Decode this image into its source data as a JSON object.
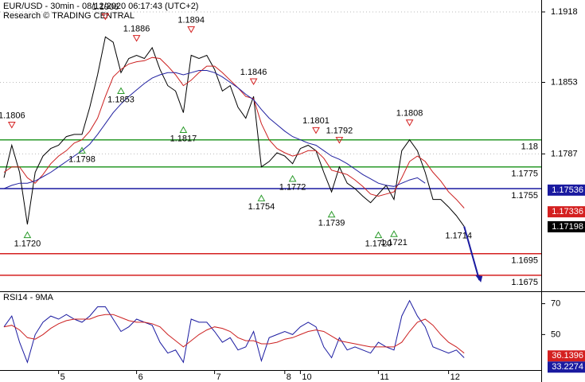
{
  "chart_data": [
    {
      "type": "line",
      "title": "EUR/USD - 30min - 08/12/2020 06:17:43 (UTC+2)",
      "subtitle": "Research © TRADING CENTRAL",
      "series": [
        {
          "color": "#000000",
          "values": [
            1.1765,
            1.1795,
            1.177,
            1.1722,
            1.177,
            1.1785,
            1.1792,
            1.1795,
            1.1803,
            1.1805,
            1.1805,
            1.183,
            1.186,
            1.1895,
            1.189,
            1.1862,
            1.1875,
            1.1878,
            1.1875,
            1.1885,
            1.1865,
            1.185,
            1.1845,
            1.1825,
            1.1878,
            1.1875,
            1.1878,
            1.1865,
            1.1845,
            1.185,
            1.183,
            1.182,
            1.184,
            1.1775,
            1.178,
            1.1788,
            1.1785,
            1.1778,
            1.1792,
            1.1795,
            1.179,
            1.177,
            1.1752,
            1.1775,
            1.176,
            1.1755,
            1.1748,
            1.1742,
            1.175,
            1.1758,
            1.1745,
            1.179,
            1.18,
            1.179,
            1.177,
            1.1745,
            1.1745,
            1.1738,
            1.173,
            1.172
          ]
        },
        {
          "color": "#cc2020",
          "values": [
            1.177,
            1.1775,
            1.1775,
            1.1765,
            1.176,
            1.1768,
            1.1778,
            1.1785,
            1.179,
            1.1797,
            1.18,
            1.1808,
            1.182,
            1.184,
            1.1858,
            1.1865,
            1.187,
            1.1872,
            1.1873,
            1.1876,
            1.1875,
            1.1868,
            1.186,
            1.185,
            1.1855,
            1.1862,
            1.1868,
            1.1868,
            1.1862,
            1.1855,
            1.1848,
            1.184,
            1.1838,
            1.1815,
            1.18,
            1.1792,
            1.1788,
            1.1785,
            1.1787,
            1.179,
            1.179,
            1.1783,
            1.1772,
            1.177,
            1.1768,
            1.1763,
            1.1757,
            1.175,
            1.1748,
            1.175,
            1.1752,
            1.1765,
            1.178,
            1.1785,
            1.178,
            1.177,
            1.1762,
            1.1752,
            1.1745,
            1.1737
          ]
        },
        {
          "color": "#2020a0",
          "values": [
            1.1755,
            1.1758,
            1.176,
            1.176,
            1.1762,
            1.1766,
            1.177,
            1.1775,
            1.178,
            1.1785,
            1.179,
            1.1796,
            1.1805,
            1.1815,
            1.1825,
            1.1833,
            1.184,
            1.1846,
            1.1852,
            1.1857,
            1.186,
            1.1862,
            1.1862,
            1.186,
            1.1862,
            1.1864,
            1.1864,
            1.1862,
            1.1858,
            1.1853,
            1.1848,
            1.1842,
            1.1837,
            1.1828,
            1.182,
            1.1814,
            1.1808,
            1.1803,
            1.18,
            1.1797,
            1.1795,
            1.179,
            1.1785,
            1.1782,
            1.1778,
            1.1773,
            1.1768,
            1.1764,
            1.176,
            1.1758,
            1.1757,
            1.176,
            1.1763,
            1.1765,
            1.176,
            null,
            null,
            null,
            null,
            null
          ]
        }
      ],
      "ylim": [
        1.1661,
        1.1929
      ],
      "yticks": [
        1.1918,
        1.1853,
        1.1787
      ],
      "grid": true,
      "levels": [
        {
          "value": 1.18,
          "color": "#2a9a2a"
        },
        {
          "value": 1.1775,
          "color": "#2a9a2a"
        },
        {
          "value": 1.1755,
          "color": "#1a1aa0"
        },
        {
          "value": 1.1695,
          "color": "#d42020"
        },
        {
          "value": 1.1675,
          "color": "#d42020"
        }
      ],
      "annotations": [
        {
          "value": 1.1806,
          "label": "1.1806",
          "kind": "high",
          "index": 1
        },
        {
          "value": 1.172,
          "label": "1.1720",
          "kind": "low",
          "index": 3
        },
        {
          "value": 1.1798,
          "label": "1.1798",
          "kind": "low",
          "index": 10
        },
        {
          "value": 1.1906,
          "label": "1.1906",
          "kind": "high",
          "index": 13
        },
        {
          "value": 1.1853,
          "label": "1.1853",
          "kind": "low",
          "index": 15
        },
        {
          "value": 1.1886,
          "label": "1.1886",
          "kind": "high",
          "index": 17
        },
        {
          "value": 1.1817,
          "label": "1.1817",
          "kind": "low",
          "index": 23
        },
        {
          "value": 1.1894,
          "label": "1.1894",
          "kind": "high",
          "index": 24
        },
        {
          "value": 1.1846,
          "label": "1.1846",
          "kind": "high",
          "index": 32
        },
        {
          "value": 1.1754,
          "label": "1.1754",
          "kind": "low",
          "index": 33
        },
        {
          "value": 1.1772,
          "label": "1.1772",
          "kind": "low",
          "index": 37
        },
        {
          "value": 1.1801,
          "label": "1.1801",
          "kind": "high",
          "index": 40
        },
        {
          "value": 1.1739,
          "label": "1.1739",
          "kind": "low",
          "index": 42
        },
        {
          "value": 1.1792,
          "label": "1.1792",
          "kind": "high",
          "index": 43
        },
        {
          "value": 1.172,
          "label": "1.1720",
          "kind": "low",
          "index": 48
        },
        {
          "value": 1.1721,
          "label": "1.1721",
          "kind": "low",
          "index": 50
        },
        {
          "value": 1.1808,
          "label": "1.1808",
          "kind": "high",
          "index": 52
        },
        {
          "value": 1.1714,
          "label": "1.1714",
          "kind": "target",
          "index": 58
        }
      ],
      "price_tags": [
        {
          "value": 1.17536,
          "color": "#1a1aa0"
        },
        {
          "value": 1.17336,
          "color": "#d42020"
        },
        {
          "value": 1.17198,
          "color": "#000000"
        }
      ]
    },
    {
      "type": "line",
      "title": "RSI14 - 9MA",
      "categories": [
        null,
        null,
        null,
        null,
        null,
        null,
        null,
        "5",
        null,
        null,
        null,
        null,
        null,
        null,
        null,
        null,
        null,
        "6",
        null,
        null,
        null,
        null,
        null,
        null,
        null,
        null,
        null,
        "7",
        null,
        null,
        null,
        null,
        null,
        null,
        null,
        null,
        "8",
        null,
        "10",
        null,
        null,
        null,
        null,
        null,
        null,
        null,
        null,
        null,
        "11",
        null,
        null,
        null,
        null,
        null,
        null,
        null,
        null,
        "12",
        null,
        null
      ],
      "series": [
        {
          "color": "#1a1aa0",
          "values": [
            55,
            62,
            45,
            32,
            50,
            58,
            62,
            60,
            63,
            60,
            58,
            62,
            68,
            68,
            60,
            52,
            55,
            60,
            58,
            56,
            45,
            38,
            40,
            32,
            60,
            58,
            58,
            52,
            45,
            48,
            40,
            42,
            52,
            33,
            48,
            50,
            52,
            50,
            55,
            58,
            55,
            42,
            35,
            48,
            40,
            42,
            40,
            38,
            45,
            42,
            40,
            62,
            72,
            62,
            55,
            42,
            40,
            38,
            40,
            35
          ]
        },
        {
          "color": "#cc2020",
          "values": [
            55,
            56,
            53,
            48,
            47,
            50,
            54,
            57,
            59,
            60,
            60,
            60,
            62,
            63,
            63,
            61,
            59,
            58,
            58,
            57,
            55,
            50,
            46,
            42,
            46,
            50,
            53,
            55,
            54,
            52,
            48,
            46,
            46,
            44,
            44,
            45,
            47,
            48,
            50,
            52,
            53,
            52,
            49,
            46,
            45,
            44,
            43,
            42,
            42,
            42,
            42,
            45,
            52,
            58,
            60,
            56,
            50,
            45,
            42,
            38
          ]
        }
      ],
      "ylim": [
        27,
        77
      ],
      "yticks": [
        70,
        50
      ],
      "price_tags": [
        {
          "value": 36.1396,
          "color": "#d42020"
        },
        {
          "value": 33.2274,
          "color": "#1a1aa0"
        }
      ]
    }
  ]
}
